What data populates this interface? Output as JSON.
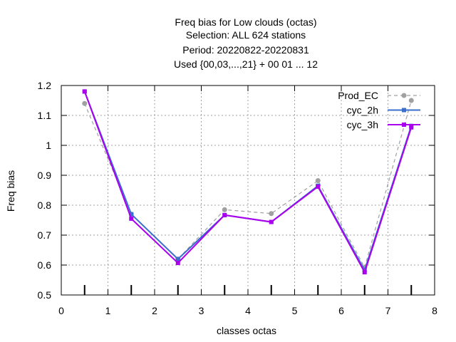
{
  "chart_data": {
    "type": "line",
    "title_lines": [
      "Freq bias  for Low clouds (octas)",
      "Selection: ALL    624 stations",
      "Period: 20220822-20220831",
      "Used {00,03,...,21} + 00 01 ... 12"
    ],
    "xlabel": "classes octas",
    "ylabel": "Freq bias",
    "xlim": [
      0,
      8
    ],
    "ylim": [
      0.5,
      1.2
    ],
    "xticks": [
      0,
      1,
      2,
      3,
      4,
      5,
      6,
      7,
      8
    ],
    "yticks": [
      0.5,
      0.6,
      0.7,
      0.8,
      0.9,
      1.0,
      1.1,
      1.2
    ],
    "xtick_labels": [
      "0",
      "1",
      "2",
      "3",
      "4",
      "5",
      "6",
      "7",
      "8"
    ],
    "ytick_labels": [
      "0.5",
      "0.6",
      "0.7",
      "0.8",
      "0.9",
      "1",
      "1.1",
      "1.2"
    ],
    "grid": true,
    "legend_position": "top-right",
    "x": [
      0.5,
      1.5,
      2.5,
      3.5,
      4.5,
      5.5,
      6.5,
      7.5
    ],
    "series": [
      {
        "name": "Prod_EC",
        "color": "#a0a0a0",
        "dashed": true,
        "marker": "circle",
        "values": [
          1.14,
          0.77,
          0.62,
          0.785,
          0.772,
          0.882,
          0.592,
          1.15
        ]
      },
      {
        "name": "cyc_2h",
        "color": "#3a6fcc",
        "dashed": false,
        "marker": "square",
        "values": [
          1.18,
          0.77,
          0.62,
          0.767,
          0.744,
          0.865,
          0.583,
          1.065
        ]
      },
      {
        "name": "cyc_3h",
        "color": "#aa00ee",
        "dashed": false,
        "marker": "square",
        "values": [
          1.18,
          0.755,
          0.607,
          0.767,
          0.744,
          0.862,
          0.576,
          1.06
        ]
      }
    ]
  }
}
